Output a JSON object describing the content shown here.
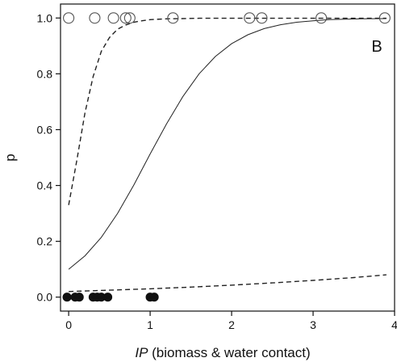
{
  "chart_data": {
    "type": "scatter",
    "panel_label": "B",
    "xlabel_italic": "IP",
    "xlabel_rest": " (biomass & water contact)",
    "ylabel": "p",
    "xlim": [
      -0.1,
      4.0
    ],
    "ylim": [
      -0.05,
      1.05
    ],
    "x_ticks": [
      0,
      1,
      2,
      3,
      4
    ],
    "y_ticks": [
      0.0,
      0.2,
      0.4,
      0.6,
      0.8,
      1.0
    ],
    "x_tick_labels": [
      "0",
      "1",
      "2",
      "3",
      "4"
    ],
    "y_tick_labels": [
      "0.0",
      "0.2",
      "0.4",
      "0.6",
      "0.8",
      "1.0"
    ],
    "grid": false,
    "series": [
      {
        "marker": "open-circle",
        "x": [
          0.0,
          0.32,
          0.55,
          0.7,
          0.75,
          1.28,
          2.22,
          2.37,
          3.1,
          3.88
        ],
        "y": [
          1,
          1,
          1,
          1,
          1,
          1,
          1,
          1,
          1,
          1
        ]
      },
      {
        "marker": "filled-circle",
        "x": [
          -0.02,
          0.08,
          0.13,
          0.3,
          0.35,
          0.4,
          0.48,
          1.0,
          1.05
        ],
        "y": [
          0,
          0,
          0,
          0,
          0,
          0,
          0,
          0,
          0
        ]
      }
    ],
    "curves": [
      {
        "style": "solid",
        "x": [
          0.0,
          0.2,
          0.4,
          0.6,
          0.8,
          1.0,
          1.2,
          1.4,
          1.6,
          1.8,
          2.0,
          2.2,
          2.4,
          2.6,
          2.8,
          3.0,
          3.2,
          3.4,
          3.6,
          3.9
        ],
        "y": [
          0.1,
          0.148,
          0.214,
          0.3,
          0.402,
          0.513,
          0.62,
          0.718,
          0.8,
          0.862,
          0.908,
          0.94,
          0.962,
          0.976,
          0.985,
          0.99,
          0.994,
          0.996,
          0.997,
          0.998
        ]
      },
      {
        "style": "dashed",
        "x": [
          0.0,
          0.1,
          0.2,
          0.3,
          0.4,
          0.5,
          0.6,
          0.7,
          0.8,
          0.9,
          1.0,
          1.2,
          1.4,
          1.6,
          2.0,
          2.5,
          3.0,
          3.5,
          3.9
        ],
        "y": [
          0.33,
          0.49,
          0.66,
          0.79,
          0.88,
          0.93,
          0.96,
          0.975,
          0.985,
          0.99,
          0.994,
          0.997,
          0.998,
          0.999,
          0.999,
          0.999,
          0.999,
          0.999,
          0.999
        ]
      },
      {
        "style": "dashed",
        "x": [
          0.0,
          0.5,
          1.0,
          1.5,
          2.0,
          2.5,
          3.0,
          3.5,
          3.9
        ],
        "y": [
          0.02,
          0.025,
          0.03,
          0.036,
          0.043,
          0.051,
          0.06,
          0.07,
          0.08
        ]
      }
    ]
  }
}
